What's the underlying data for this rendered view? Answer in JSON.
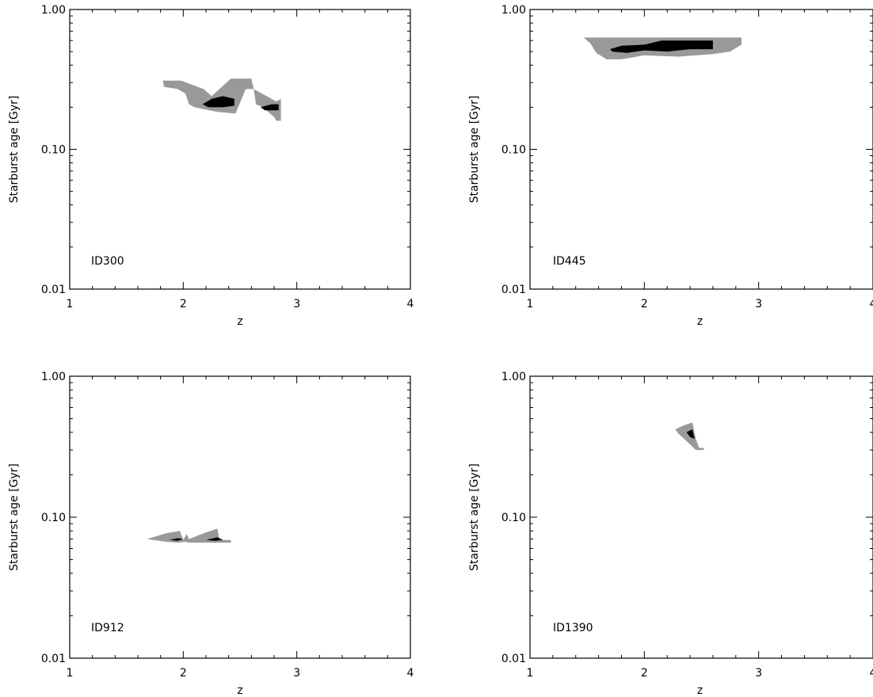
{
  "colors": {
    "outer_contour": "#999999",
    "inner_contour": "#000000",
    "axes": "#000000",
    "background": "#ffffff"
  },
  "chart_data": [
    {
      "type": "area",
      "panel_label": "ID300",
      "xlabel": "z",
      "ylabel": "Starburst age [Gyr]",
      "xlim": [
        1,
        4
      ],
      "ylim": [
        0.01,
        1.0
      ],
      "y_scale": "log",
      "x_ticks": [
        "1",
        "2",
        "3",
        "4"
      ],
      "y_ticks": [
        "0.01",
        "0.10",
        "1.00"
      ],
      "contours": [
        {
          "level": "outer",
          "color": "#999999",
          "points": [
            [
              1.82,
              0.31
            ],
            [
              1.98,
              0.31
            ],
            [
              2.18,
              0.27
            ],
            [
              2.25,
              0.24
            ],
            [
              2.42,
              0.32
            ],
            [
              2.6,
              0.32
            ],
            [
              2.62,
              0.27
            ],
            [
              2.82,
              0.22
            ],
            [
              2.86,
              0.23
            ],
            [
              2.86,
              0.16
            ],
            [
              2.82,
              0.16
            ],
            [
              2.8,
              0.17
            ],
            [
              2.7,
              0.2
            ],
            [
              2.64,
              0.21
            ],
            [
              2.62,
              0.27
            ],
            [
              2.55,
              0.27
            ],
            [
              2.46,
              0.18
            ],
            [
              2.3,
              0.185
            ],
            [
              2.1,
              0.2
            ],
            [
              2.05,
              0.21
            ],
            [
              2.02,
              0.25
            ],
            [
              1.95,
              0.27
            ],
            [
              1.83,
              0.28
            ]
          ]
        },
        {
          "level": "inner",
          "color": "#000000",
          "points": [
            [
              2.17,
              0.21
            ],
            [
              2.25,
              0.23
            ],
            [
              2.35,
              0.24
            ],
            [
              2.45,
              0.23
            ],
            [
              2.45,
              0.205
            ],
            [
              2.35,
              0.2
            ],
            [
              2.22,
              0.2
            ]
          ]
        },
        {
          "level": "inner",
          "color": "#000000",
          "points": [
            [
              2.68,
              0.2
            ],
            [
              2.78,
              0.21
            ],
            [
              2.84,
              0.21
            ],
            [
              2.84,
              0.19
            ],
            [
              2.72,
              0.19
            ]
          ]
        }
      ]
    },
    {
      "type": "area",
      "panel_label": "ID445",
      "xlabel": "z",
      "ylabel": "Starburst age [Gyr]",
      "xlim": [
        1,
        4
      ],
      "ylim": [
        0.01,
        1.0
      ],
      "y_scale": "log",
      "x_ticks": [
        "1",
        "2",
        "3",
        "4"
      ],
      "y_ticks": [
        "0.01",
        "0.10",
        "1.00"
      ],
      "contours": [
        {
          "level": "outer",
          "color": "#999999",
          "points": [
            [
              1.47,
              0.63
            ],
            [
              2.85,
              0.63
            ],
            [
              2.85,
              0.56
            ],
            [
              2.75,
              0.5
            ],
            [
              2.6,
              0.48
            ],
            [
              2.3,
              0.46
            ],
            [
              2.0,
              0.47
            ],
            [
              1.8,
              0.44
            ],
            [
              1.67,
              0.44
            ],
            [
              1.58,
              0.49
            ],
            [
              1.53,
              0.57
            ]
          ]
        },
        {
          "level": "inner",
          "color": "#000000",
          "points": [
            [
              1.7,
              0.52
            ],
            [
              1.8,
              0.55
            ],
            [
              2.0,
              0.56
            ],
            [
              2.15,
              0.6
            ],
            [
              2.6,
              0.6
            ],
            [
              2.6,
              0.52
            ],
            [
              2.4,
              0.52
            ],
            [
              2.2,
              0.5
            ],
            [
              2.0,
              0.51
            ],
            [
              1.85,
              0.49
            ],
            [
              1.72,
              0.5
            ]
          ]
        }
      ]
    },
    {
      "type": "area",
      "panel_label": "ID912",
      "xlabel": "z",
      "ylabel": "Starburst age [Gyr]",
      "xlim": [
        1,
        4
      ],
      "ylim": [
        0.01,
        1.0
      ],
      "y_scale": "log",
      "x_ticks": [
        "1",
        "2",
        "3",
        "4"
      ],
      "y_ticks": [
        "0.01",
        "0.10",
        "1.00"
      ],
      "contours": [
        {
          "level": "outer",
          "color": "#999999",
          "points": [
            [
              1.68,
              0.07
            ],
            [
              1.85,
              0.077
            ],
            [
              1.97,
              0.08
            ],
            [
              2.0,
              0.069
            ],
            [
              2.03,
              0.076
            ],
            [
              2.05,
              0.07
            ],
            [
              2.2,
              0.078
            ],
            [
              2.3,
              0.083
            ],
            [
              2.32,
              0.069
            ],
            [
              2.42,
              0.069
            ],
            [
              2.42,
              0.066
            ],
            [
              2.3,
              0.066
            ],
            [
              2.2,
              0.066
            ],
            [
              2.05,
              0.066
            ],
            [
              2.02,
              0.067
            ],
            [
              1.95,
              0.066
            ],
            [
              1.85,
              0.067
            ]
          ]
        },
        {
          "level": "inner",
          "color": "#000000",
          "points": [
            [
              1.88,
              0.069
            ],
            [
              1.95,
              0.071
            ],
            [
              2.0,
              0.07
            ],
            [
              1.95,
              0.068
            ]
          ]
        },
        {
          "level": "inner",
          "color": "#000000",
          "points": [
            [
              2.2,
              0.069
            ],
            [
              2.3,
              0.072
            ],
            [
              2.35,
              0.069
            ],
            [
              2.28,
              0.068
            ]
          ]
        }
      ]
    },
    {
      "type": "area",
      "panel_label": "ID1390",
      "xlabel": "z",
      "ylabel": "Starburst age [Gyr]",
      "xlim": [
        1,
        4
      ],
      "ylim": [
        0.01,
        1.0
      ],
      "y_scale": "log",
      "x_ticks": [
        "1",
        "2",
        "3",
        "4"
      ],
      "y_ticks": [
        "0.01",
        "0.10",
        "1.00"
      ],
      "contours": [
        {
          "level": "outer",
          "color": "#999999",
          "points": [
            [
              2.27,
              0.42
            ],
            [
              2.35,
              0.45
            ],
            [
              2.42,
              0.47
            ],
            [
              2.45,
              0.36
            ],
            [
              2.48,
              0.31
            ],
            [
              2.52,
              0.31
            ],
            [
              2.52,
              0.3
            ],
            [
              2.45,
              0.3
            ],
            [
              2.38,
              0.34
            ],
            [
              2.3,
              0.39
            ]
          ]
        },
        {
          "level": "inner",
          "color": "#000000",
          "points": [
            [
              2.37,
              0.4
            ],
            [
              2.42,
              0.42
            ],
            [
              2.44,
              0.36
            ],
            [
              2.4,
              0.37
            ]
          ]
        }
      ]
    }
  ]
}
